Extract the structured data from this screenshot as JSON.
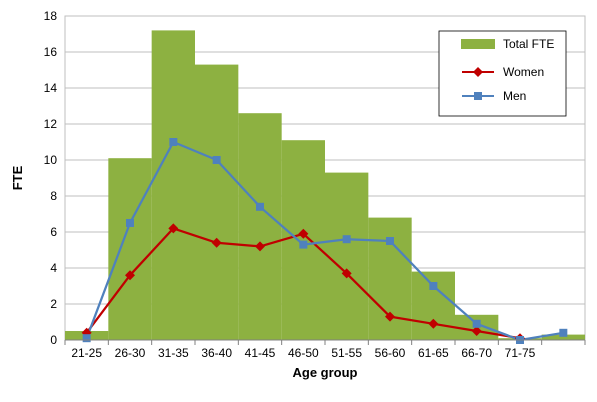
{
  "chart_data": {
    "type": "bar",
    "xlabel": "Age group",
    "ylabel": "FTE",
    "ylim": [
      0,
      18
    ],
    "yticks": [
      0,
      2,
      4,
      6,
      8,
      10,
      12,
      14,
      16,
      18
    ],
    "grid": "horizontal",
    "legend_position": "top-right",
    "categories": [
      "21-25",
      "26-30",
      "31-35",
      "36-40",
      "41-45",
      "46-50",
      "51-55",
      "56-60",
      "61-65",
      "66-70",
      "71-75",
      ""
    ],
    "series": [
      {
        "name": "Total FTE",
        "type": "bar",
        "color": "#8db141",
        "values": [
          0.5,
          10.1,
          17.2,
          15.3,
          12.6,
          11.1,
          9.3,
          6.8,
          3.8,
          1.4,
          0.1,
          0.3
        ]
      },
      {
        "name": "Women",
        "type": "line",
        "marker": "diamond",
        "color": "#c00000",
        "values": [
          0.4,
          3.6,
          6.2,
          5.4,
          5.2,
          5.9,
          3.7,
          1.3,
          0.9,
          0.5,
          0.1,
          null
        ]
      },
      {
        "name": "Men",
        "type": "line",
        "marker": "square",
        "color": "#4f81bd",
        "values": [
          0.1,
          6.5,
          11.0,
          10.0,
          7.4,
          5.3,
          5.6,
          5.5,
          3.0,
          0.9,
          0.0,
          0.4
        ]
      }
    ]
  }
}
